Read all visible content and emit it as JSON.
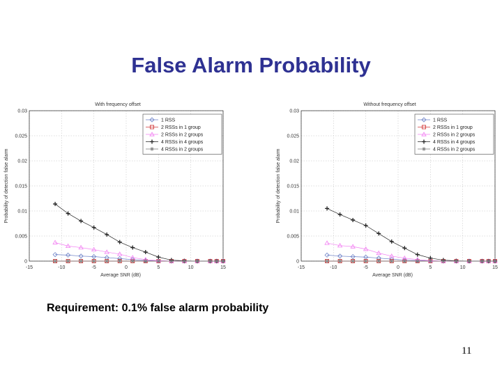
{
  "slide": {
    "title": "False Alarm Probability",
    "requirement": "Requirement: 0.1% false alarm probability",
    "page_number": "11"
  },
  "colors": {
    "title": "#2e3192",
    "series_1rss": "#6a7fc6",
    "series_2rss_1group": "#d23a3a",
    "series_2rss_2groups": "#f27ff2",
    "series_4rss_4groups": "#222222",
    "series_4rss_2groups": "#777777"
  },
  "chart_data": [
    {
      "type": "line",
      "title": "With frequency offset",
      "xlabel": "Average SNR (dB)",
      "ylabel": "Probability of detection false alarm",
      "xlim": [
        -15,
        15
      ],
      "ylim": [
        0,
        0.03
      ],
      "xticks": [
        "-15",
        "-10",
        "-5",
        "0",
        "5",
        "10",
        "15"
      ],
      "yticks": [
        "0",
        "0.005",
        "0.01",
        "0.015",
        "0.02",
        "0.025",
        "0.03"
      ],
      "grid": true,
      "legend_position": "top-right",
      "x": [
        -11,
        -9,
        -7,
        -5,
        -3,
        -1,
        1,
        3,
        5,
        7,
        9,
        11,
        13,
        14,
        15
      ],
      "series": [
        {
          "name": "1 RSS",
          "marker": "diamond",
          "color": "#6a7fc6",
          "values": [
            0.0013,
            0.0012,
            0.001,
            0.0009,
            0.0007,
            0.0005,
            0.0003,
            0.0001,
            5e-05,
            0,
            0,
            0,
            0,
            0,
            0
          ]
        },
        {
          "name": "2 RSSs in 1 group",
          "marker": "square",
          "color": "#d23a3a",
          "values": [
            0,
            0,
            0,
            0,
            0,
            0,
            0,
            0,
            0,
            0,
            0,
            0,
            0,
            0,
            0
          ]
        },
        {
          "name": "2 RSSs in 2 groups",
          "marker": "triangle",
          "color": "#f27ff2",
          "values": [
            0.0037,
            0.003,
            0.0027,
            0.0023,
            0.0018,
            0.0014,
            0.0007,
            0.0003,
            0.0001,
            0,
            0,
            0,
            0,
            0,
            0
          ]
        },
        {
          "name": "4 RSSs in 4 groups",
          "marker": "plus",
          "color": "#222222",
          "values": [
            0.0114,
            0.0095,
            0.008,
            0.0067,
            0.0053,
            0.0038,
            0.0027,
            0.0018,
            0.0008,
            0.0002,
            5e-05,
            0,
            0,
            0,
            0
          ]
        },
        {
          "name": "4 RSSs in 2 groups",
          "marker": "star",
          "color": "#777777",
          "values": [
            0,
            0,
            0,
            0,
            0,
            0,
            0,
            0,
            0,
            0,
            0,
            0,
            0,
            0,
            0
          ]
        }
      ]
    },
    {
      "type": "line",
      "title": "Without frequency offset",
      "xlabel": "Average SNR (dB)",
      "ylabel": "Probability of detection false alarm",
      "xlim": [
        -15,
        15
      ],
      "ylim": [
        0,
        0.03
      ],
      "xticks": [
        "-15",
        "-10",
        "-5",
        "0",
        "5",
        "10",
        "15"
      ],
      "yticks": [
        "0",
        "0.005",
        "0.01",
        "0.015",
        "0.02",
        "0.025",
        "0.03"
      ],
      "grid": true,
      "legend_position": "top-right",
      "x": [
        -11,
        -9,
        -7,
        -5,
        -3,
        -1,
        1,
        3,
        5,
        7,
        9,
        11,
        13,
        14,
        15
      ],
      "series": [
        {
          "name": "1 RSS",
          "marker": "diamond",
          "color": "#6a7fc6",
          "values": [
            0.0012,
            0.001,
            0.0009,
            0.0008,
            0.0006,
            0.0004,
            0.0002,
            0.0001,
            5e-05,
            0,
            0,
            0,
            0,
            0,
            0
          ]
        },
        {
          "name": "2 RSSs in 1 group",
          "marker": "square",
          "color": "#d23a3a",
          "values": [
            0,
            0,
            0,
            0,
            0,
            0,
            0,
            0,
            0,
            0,
            0,
            0,
            0,
            0,
            0
          ]
        },
        {
          "name": "2 RSSs in 2 groups",
          "marker": "triangle",
          "color": "#f27ff2",
          "values": [
            0.0036,
            0.0031,
            0.0029,
            0.0024,
            0.0016,
            0.001,
            0.0006,
            0.0003,
            0.0001,
            0,
            0,
            0,
            0,
            0,
            0
          ]
        },
        {
          "name": "4 RSSs in 4 groups",
          "marker": "plus",
          "color": "#222222",
          "values": [
            0.0105,
            0.0093,
            0.0082,
            0.0071,
            0.0055,
            0.0039,
            0.0026,
            0.0013,
            0.0006,
            0.0002,
            5e-05,
            0,
            0,
            0,
            0
          ]
        },
        {
          "name": "4 RSSs in 2 groups",
          "marker": "star",
          "color": "#777777",
          "values": [
            0,
            0,
            0,
            0,
            0,
            0,
            0,
            0,
            0,
            0,
            0,
            0,
            0,
            0,
            0
          ]
        }
      ]
    }
  ]
}
